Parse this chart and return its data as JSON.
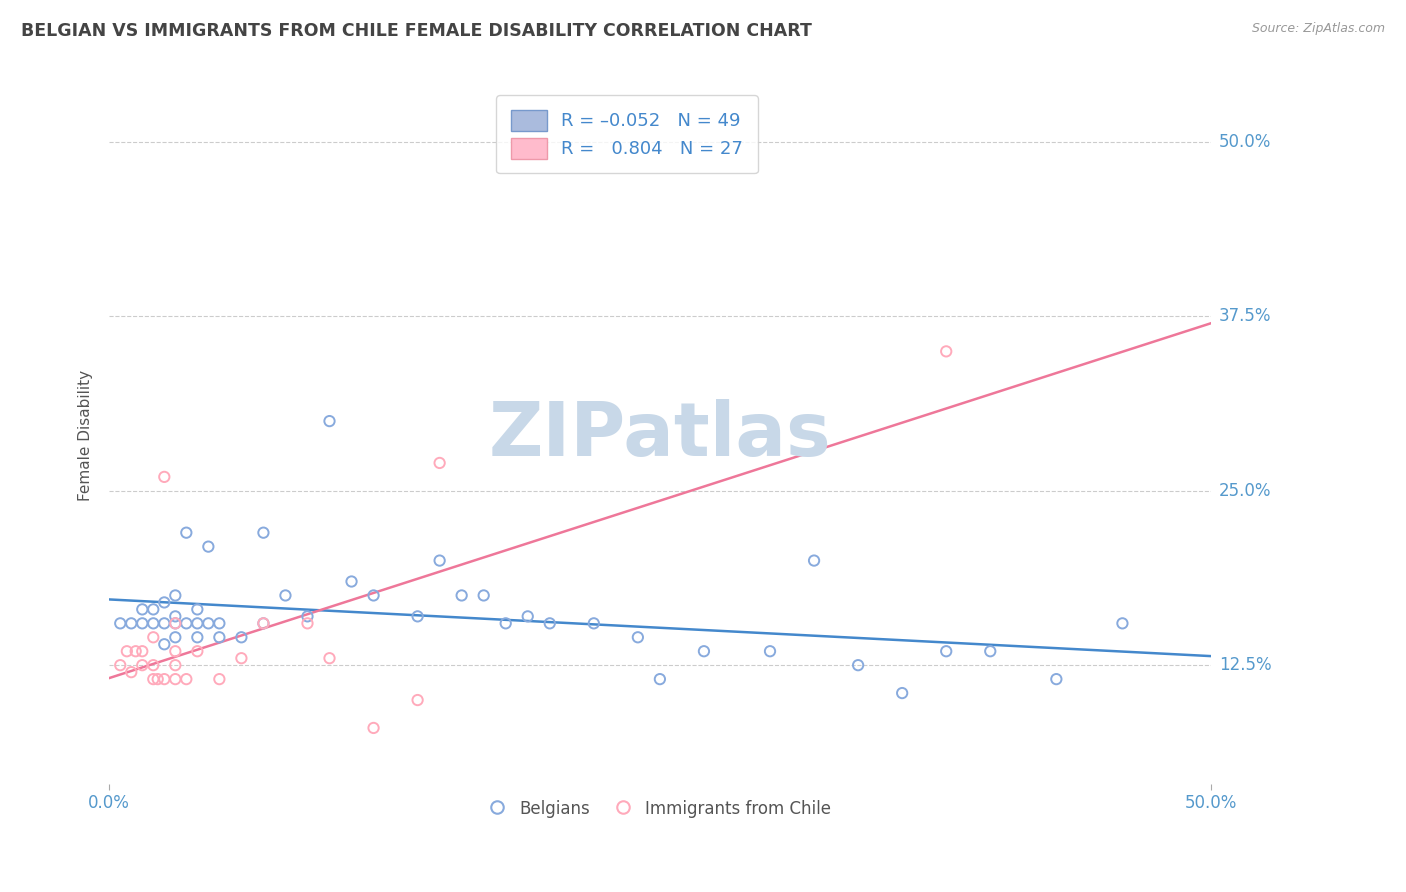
{
  "title": "BELGIAN VS IMMIGRANTS FROM CHILE FEMALE DISABILITY CORRELATION CHART",
  "source": "Source: ZipAtlas.com",
  "ylabel": "Female Disability",
  "xlim": [
    0.0,
    0.5
  ],
  "ylim": [
    0.04,
    0.54
  ],
  "ytick_labels": [
    "12.5%",
    "25.0%",
    "37.5%",
    "50.0%"
  ],
  "ytick_positions": [
    0.125,
    0.25,
    0.375,
    0.5
  ],
  "grid_color": "#cccccc",
  "background_color": "#ffffff",
  "watermark_text": "ZIPatlas",
  "watermark_color": "#c8d8e8",
  "blue_color": "#88aadd",
  "pink_color": "#ffaabb",
  "blue_line_color": "#4488cc",
  "pink_line_color": "#ee7799",
  "title_color": "#444444",
  "axis_label_color": "#5599cc",
  "legend_blue_face": "#aabbdd",
  "legend_pink_face": "#ffbbcc",
  "belgians_x": [
    0.005,
    0.01,
    0.015,
    0.015,
    0.02,
    0.02,
    0.025,
    0.025,
    0.025,
    0.03,
    0.03,
    0.03,
    0.03,
    0.035,
    0.035,
    0.04,
    0.04,
    0.04,
    0.045,
    0.045,
    0.05,
    0.05,
    0.06,
    0.07,
    0.07,
    0.08,
    0.09,
    0.1,
    0.11,
    0.12,
    0.14,
    0.15,
    0.16,
    0.17,
    0.18,
    0.19,
    0.2,
    0.22,
    0.24,
    0.25,
    0.27,
    0.3,
    0.32,
    0.34,
    0.36,
    0.38,
    0.4,
    0.43,
    0.46
  ],
  "belgians_y": [
    0.155,
    0.155,
    0.155,
    0.165,
    0.155,
    0.165,
    0.14,
    0.155,
    0.17,
    0.145,
    0.155,
    0.16,
    0.175,
    0.155,
    0.22,
    0.145,
    0.155,
    0.165,
    0.155,
    0.21,
    0.145,
    0.155,
    0.145,
    0.22,
    0.155,
    0.175,
    0.16,
    0.3,
    0.185,
    0.175,
    0.16,
    0.2,
    0.175,
    0.175,
    0.155,
    0.16,
    0.155,
    0.155,
    0.145,
    0.115,
    0.135,
    0.135,
    0.2,
    0.125,
    0.105,
    0.135,
    0.135,
    0.115,
    0.155
  ],
  "chile_x": [
    0.005,
    0.008,
    0.01,
    0.012,
    0.015,
    0.015,
    0.02,
    0.02,
    0.02,
    0.022,
    0.025,
    0.025,
    0.03,
    0.03,
    0.03,
    0.03,
    0.035,
    0.04,
    0.05,
    0.06,
    0.07,
    0.09,
    0.1,
    0.12,
    0.14,
    0.15,
    0.38
  ],
  "chile_y": [
    0.125,
    0.135,
    0.12,
    0.135,
    0.125,
    0.135,
    0.115,
    0.125,
    0.145,
    0.115,
    0.115,
    0.26,
    0.115,
    0.125,
    0.135,
    0.155,
    0.115,
    0.135,
    0.115,
    0.13,
    0.155,
    0.155,
    0.13,
    0.08,
    0.1,
    0.27,
    0.35
  ]
}
